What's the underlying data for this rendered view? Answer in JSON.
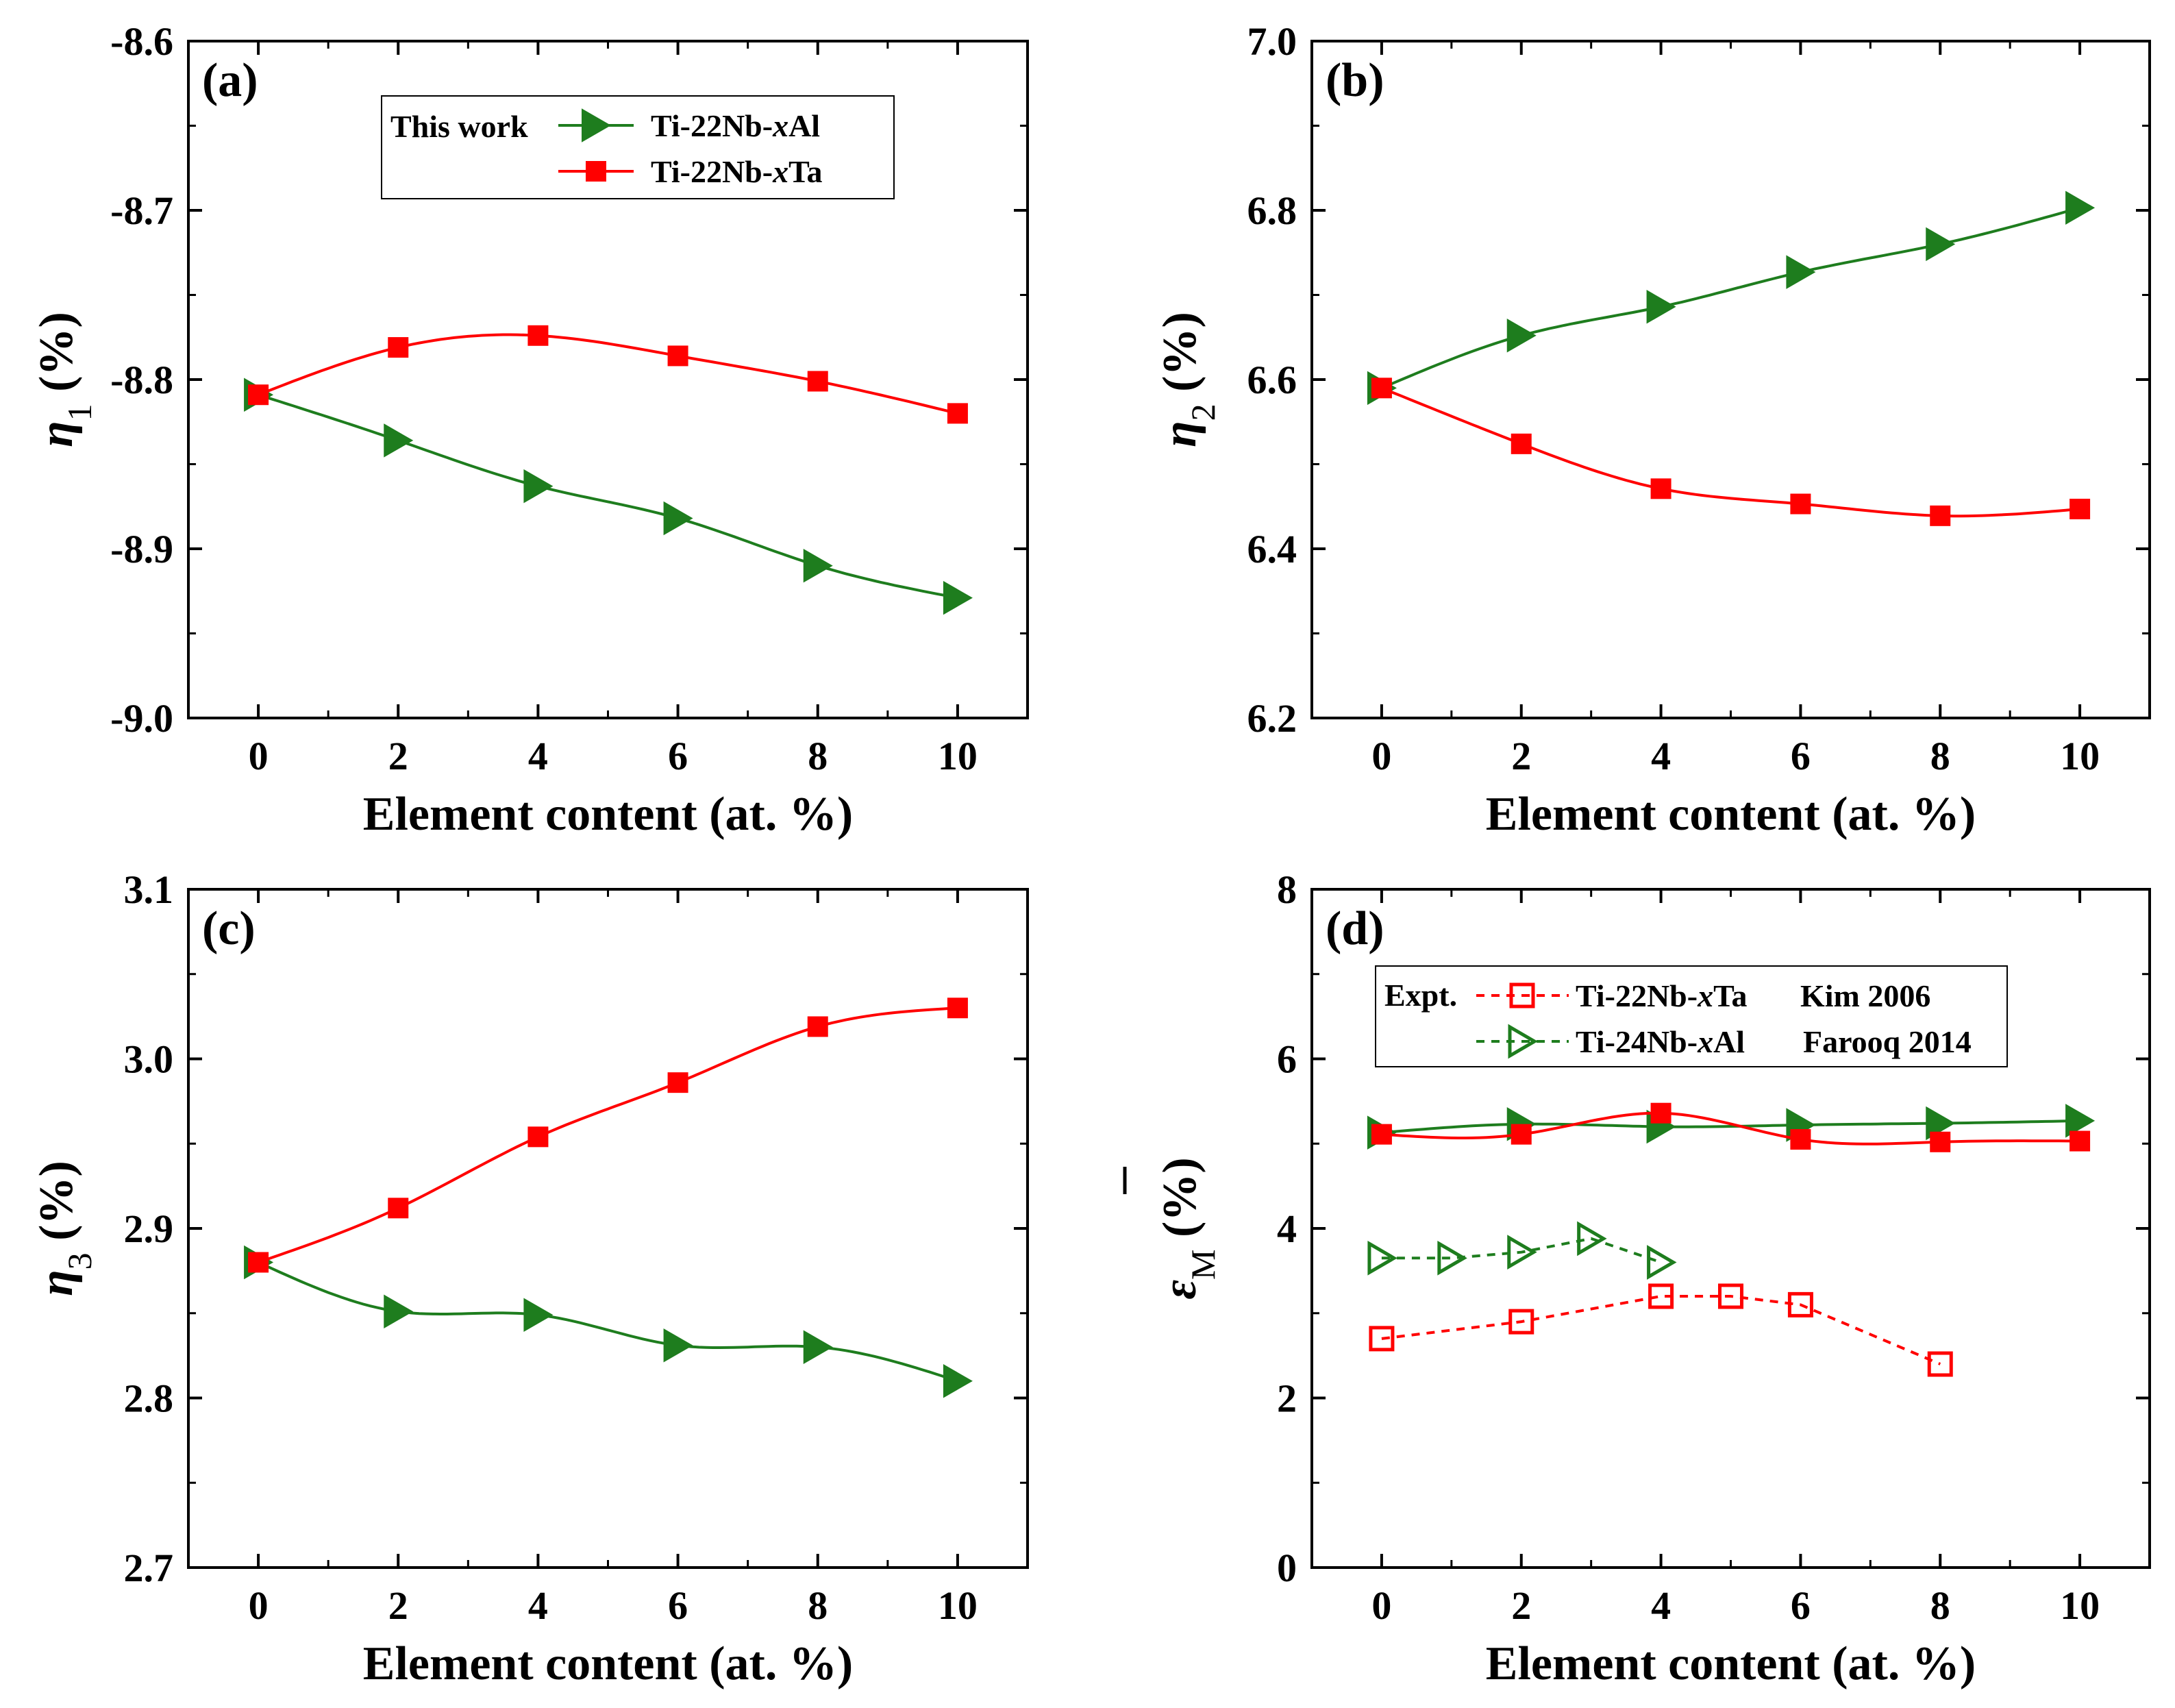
{
  "figure": {
    "background": "#ffffff"
  },
  "colors": {
    "green": "#1e7d1e",
    "red": "#ff0000",
    "axis": "#000000"
  },
  "chart_data": [
    {
      "type": "line",
      "panel": "(a)",
      "xlabel": "Element content (at. %)",
      "ylabel": "η",
      "ylabel_sub": "1",
      "ylabel_unit": " (%)",
      "xlim": [
        -1,
        11
      ],
      "ylim": [
        -9.0,
        -8.6
      ],
      "xticks": [
        "0",
        "2",
        "4",
        "6",
        "8",
        "10"
      ],
      "yticks": [
        "-9.0",
        "-8.9",
        "-8.8",
        "-8.7",
        "-8.6"
      ],
      "series": [
        {
          "name": "Ti-22Nb-xAl",
          "color": "#1e7d1e",
          "marker": "triangle-right",
          "filled": true,
          "line": "solid",
          "x": [
            0,
            2,
            4,
            6,
            8,
            10
          ],
          "y": [
            -8.809,
            -8.836,
            -8.863,
            -8.882,
            -8.91,
            -8.929
          ]
        },
        {
          "name": "Ti-22Nb-xTa",
          "color": "#ff0000",
          "marker": "square",
          "filled": true,
          "line": "solid",
          "x": [
            0,
            2,
            4,
            6,
            8,
            10
          ],
          "y": [
            -8.809,
            -8.781,
            -8.774,
            -8.786,
            -8.801,
            -8.82
          ]
        }
      ],
      "legend": {
        "position": "top-left",
        "title": "This work",
        "entries": [
          {
            "pre": "Ti-22Nb-",
            "italic": "x",
            "post": "Al"
          },
          {
            "pre": "Ti-22Nb-",
            "italic": "x",
            "post": "Ta"
          }
        ]
      }
    },
    {
      "type": "line",
      "panel": "(b)",
      "xlabel": "Element content (at. %)",
      "ylabel": "η",
      "ylabel_sub": "2",
      "ylabel_unit": " (%)",
      "xlim": [
        -1,
        11
      ],
      "ylim": [
        6.2,
        7.0
      ],
      "xticks": [
        "0",
        "2",
        "4",
        "6",
        "8",
        "10"
      ],
      "yticks": [
        "6.2",
        "6.4",
        "6.6",
        "6.8",
        "7.0"
      ],
      "series": [
        {
          "name": "Ti-22Nb-xAl",
          "color": "#1e7d1e",
          "marker": "triangle-right",
          "filled": true,
          "line": "solid",
          "x": [
            0,
            2,
            4,
            6,
            8,
            10
          ],
          "y": [
            6.59,
            6.652,
            6.686,
            6.727,
            6.76,
            6.803
          ]
        },
        {
          "name": "Ti-22Nb-xTa",
          "color": "#ff0000",
          "marker": "square",
          "filled": true,
          "line": "solid",
          "x": [
            0,
            2,
            4,
            6,
            8,
            10
          ],
          "y": [
            6.59,
            6.524,
            6.471,
            6.453,
            6.439,
            6.447
          ]
        }
      ]
    },
    {
      "type": "line",
      "panel": "(c)",
      "xlabel": "Element content (at. %)",
      "ylabel": "η",
      "ylabel_sub": "3",
      "ylabel_unit": " (%)",
      "xlim": [
        -1,
        11
      ],
      "ylim": [
        2.7,
        3.1
      ],
      "xticks": [
        "0",
        "2",
        "4",
        "6",
        "8",
        "10"
      ],
      "yticks": [
        "2.7",
        "2.8",
        "2.9",
        "3.0",
        "3.1"
      ],
      "series": [
        {
          "name": "Ti-22Nb-xAl",
          "color": "#1e7d1e",
          "marker": "triangle-right",
          "filled": true,
          "line": "solid",
          "x": [
            0,
            2,
            4,
            6,
            8,
            10
          ],
          "y": [
            2.88,
            2.851,
            2.849,
            2.831,
            2.83,
            2.81
          ]
        },
        {
          "name": "Ti-22Nb-xTa",
          "color": "#ff0000",
          "marker": "square",
          "filled": true,
          "line": "solid",
          "x": [
            0,
            2,
            4,
            6,
            8,
            10
          ],
          "y": [
            2.88,
            2.912,
            2.954,
            2.986,
            3.019,
            3.03
          ]
        }
      ]
    },
    {
      "type": "line",
      "panel": "(d)",
      "xlabel": "Element content (at. %)",
      "ylabel": "ε",
      "ylabel_sub": "M",
      "ylabel_unit": " (%)",
      "xlim": [
        -1,
        11
      ],
      "ylim": [
        0,
        8
      ],
      "xticks": [
        "0",
        "2",
        "4",
        "6",
        "8",
        "10"
      ],
      "yticks": [
        "0",
        "2",
        "4",
        "6",
        "8"
      ],
      "series": [
        {
          "name": "Ti-22Nb-xAl",
          "color": "#1e7d1e",
          "marker": "triangle-right",
          "filled": true,
          "line": "solid",
          "x": [
            0,
            2,
            4,
            6,
            8,
            10
          ],
          "y": [
            5.13,
            5.23,
            5.2,
            5.22,
            5.24,
            5.27
          ]
        },
        {
          "name": "Ti-22Nb-xTa",
          "color": "#ff0000",
          "marker": "square",
          "filled": true,
          "line": "solid",
          "x": [
            0,
            2,
            4,
            6,
            8,
            10
          ],
          "y": [
            5.11,
            5.11,
            5.36,
            5.05,
            5.02,
            5.03
          ]
        },
        {
          "name": "Ti-22Nb-xTa Kim 2006",
          "color": "#ff0000",
          "marker": "square",
          "filled": false,
          "line": "dashed",
          "x": [
            0,
            2,
            4,
            5,
            6,
            8
          ],
          "y": [
            2.7,
            2.9,
            3.2,
            3.2,
            3.1,
            2.4
          ]
        },
        {
          "name": "Ti-24Nb-xAl Farooq 2014",
          "color": "#1e7d1e",
          "marker": "triangle-right",
          "filled": false,
          "line": "dashed",
          "x": [
            0,
            1,
            2,
            3,
            4
          ],
          "y": [
            3.65,
            3.65,
            3.72,
            3.88,
            3.6
          ]
        }
      ],
      "legend": {
        "position": "top-left",
        "title": "Expt.",
        "entries": [
          {
            "pre": "Ti-22Nb-",
            "italic": "x",
            "post": "Ta",
            "ref": "Kim 2006"
          },
          {
            "pre": "Ti-24Nb-",
            "italic": "x",
            "post": "Al",
            "ref": "Farooq 2014"
          }
        ]
      }
    }
  ]
}
